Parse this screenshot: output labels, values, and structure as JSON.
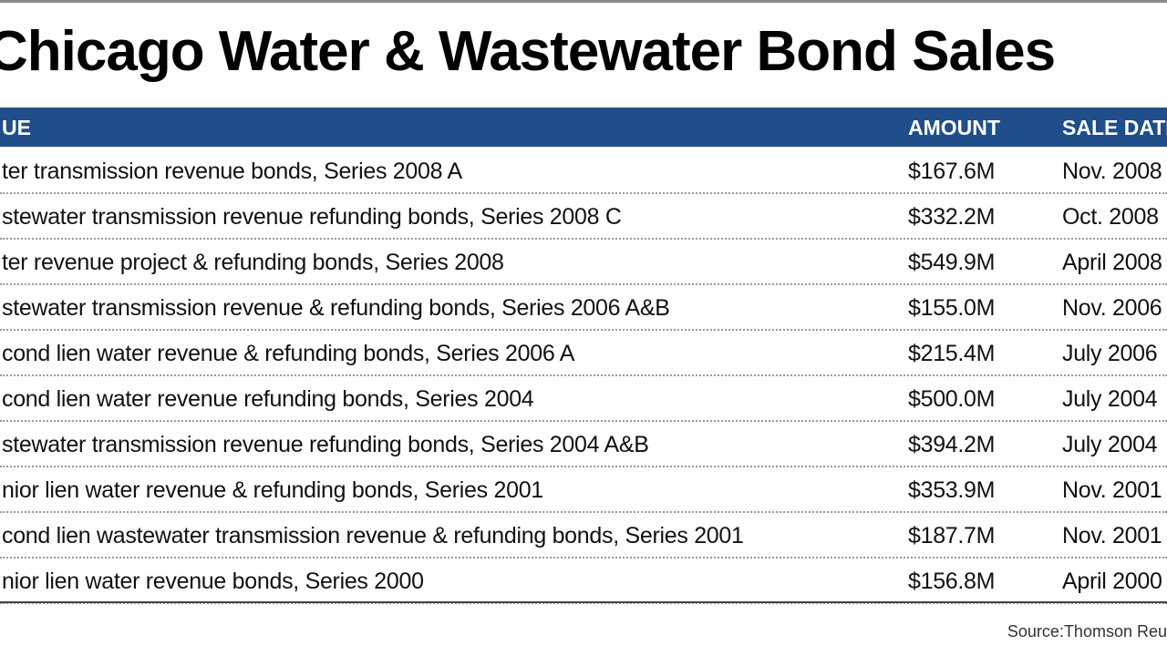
{
  "header": {
    "title": "Chicago Water & Wastewater Bond Sales"
  },
  "table": {
    "columns": [
      "UE",
      "AMOUNT",
      "SALE DATE"
    ],
    "rows": [
      [
        "ter transmission revenue bonds, Series 2008 A",
        "$167.6M",
        "Nov. 2008"
      ],
      [
        "stewater transmission revenue refunding bonds, Series 2008 C",
        "$332.2M",
        "Oct. 2008"
      ],
      [
        "ter revenue project & refunding bonds, Series 2008",
        "$549.9M",
        "April 2008"
      ],
      [
        "stewater transmission revenue & refunding bonds, Series 2006 A&B",
        "$155.0M",
        "Nov. 2006"
      ],
      [
        "cond lien water revenue & refunding bonds, Series 2006 A",
        "$215.4M",
        "July 2006"
      ],
      [
        "cond lien water revenue refunding bonds, Series 2004",
        "$500.0M",
        "July 2004"
      ],
      [
        "stewater transmission revenue refunding bonds, Series 2004 A&B",
        "$394.2M",
        "July 2004"
      ],
      [
        "nior lien water revenue & refunding bonds, Series 2001",
        "$353.9M",
        "Nov. 2001"
      ],
      [
        "cond lien wastewater transmission revenue & refunding bonds, Series 2001",
        "$187.7M",
        "Nov. 2001"
      ],
      [
        "nior lien water revenue bonds, Series 2000",
        "$156.8M",
        "April 2000"
      ]
    ]
  },
  "footer": {
    "source": "Source:Thomson Reu"
  }
}
